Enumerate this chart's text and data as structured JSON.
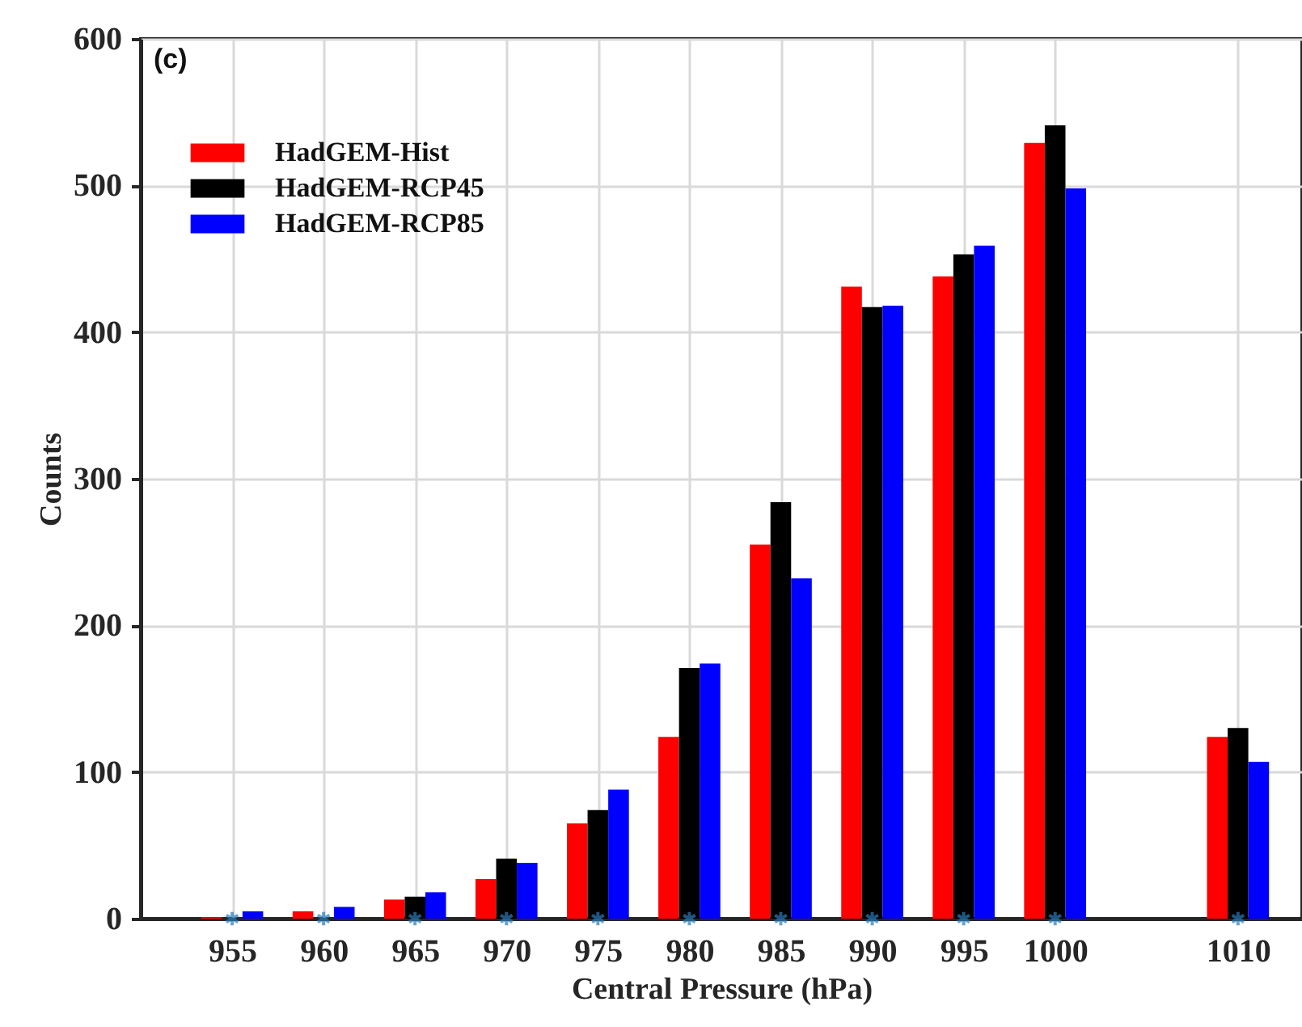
{
  "chart_data": {
    "type": "bar",
    "xlabel": "Central Pressure (hPa)",
    "ylabel": "Counts",
    "annotations": [
      "(c)"
    ],
    "x": [
      955,
      960,
      965,
      970,
      975,
      980,
      985,
      990,
      995,
      1000,
      1010
    ],
    "series": [
      {
        "name": "HadGEM-Hist",
        "color": "#ff0000",
        "values": [
          1,
          5,
          13,
          27,
          65,
          124,
          255,
          431,
          438,
          529,
          124
        ]
      },
      {
        "name": "HadGEM-RCP45",
        "color": "#000000",
        "values": [
          null,
          null,
          15,
          41,
          74,
          171,
          284,
          417,
          453,
          541,
          130
        ]
      },
      {
        "name": "HadGEM-RCP85",
        "color": "#0000ff",
        "values": [
          5,
          8,
          18,
          38,
          88,
          174,
          232,
          418,
          459,
          498,
          107
        ]
      },
      {
        "type": "scatter",
        "color": "#2b7bba",
        "marker": "cross",
        "values": [
          0,
          0,
          0,
          0,
          0,
          0,
          0,
          0,
          0,
          0,
          0
        ]
      }
    ],
    "xlim": [
      950,
      1013.5
    ],
    "ylim": [
      0,
      600
    ],
    "xticks": [
      955,
      960,
      965,
      970,
      975,
      980,
      985,
      990,
      995,
      1000,
      1010
    ],
    "yticks": [
      0,
      100,
      200,
      300,
      400,
      500,
      600
    ],
    "grid": true,
    "legend": "top left"
  }
}
